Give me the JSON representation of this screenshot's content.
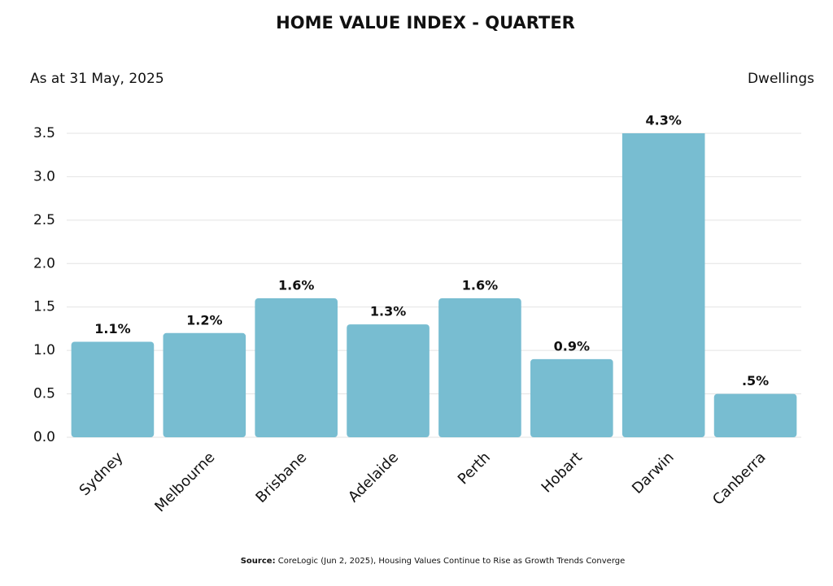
{
  "chart_data": {
    "type": "bar",
    "title": "HOME VALUE INDEX - QUARTER",
    "subtitle_left": "As at 31 May, 2025",
    "subtitle_right": "Dwellings",
    "categories": [
      "Sydney",
      "Melbourne",
      "Brisbane",
      "Adelaide",
      "Perth",
      "Hobart",
      "Darwin",
      "Canberra"
    ],
    "values": [
      1.1,
      1.2,
      1.6,
      1.3,
      1.6,
      0.9,
      4.3,
      0.5
    ],
    "value_labels": [
      "1.1%",
      "1.2%",
      "1.6%",
      "1.3%",
      "1.6%",
      "0.9%",
      "4.3%",
      ".5%"
    ],
    "color": "#78bdd1",
    "ylim": [
      0,
      3.5
    ],
    "yticks": [
      {
        "value": 0,
        "label": "0.0"
      },
      0.5,
      {
        "value": 1,
        "label": "1.0"
      },
      1.5,
      {
        "value": 2,
        "label": "2.0"
      },
      2.5,
      {
        "value": 3,
        "label": "3.0"
      },
      3.5
    ],
    "grid": true,
    "source_label": "Source:",
    "source_text": "CoreLogic (Jun 2, 2025), Housing Values Continue to Rise as Growth Trends Converge"
  }
}
